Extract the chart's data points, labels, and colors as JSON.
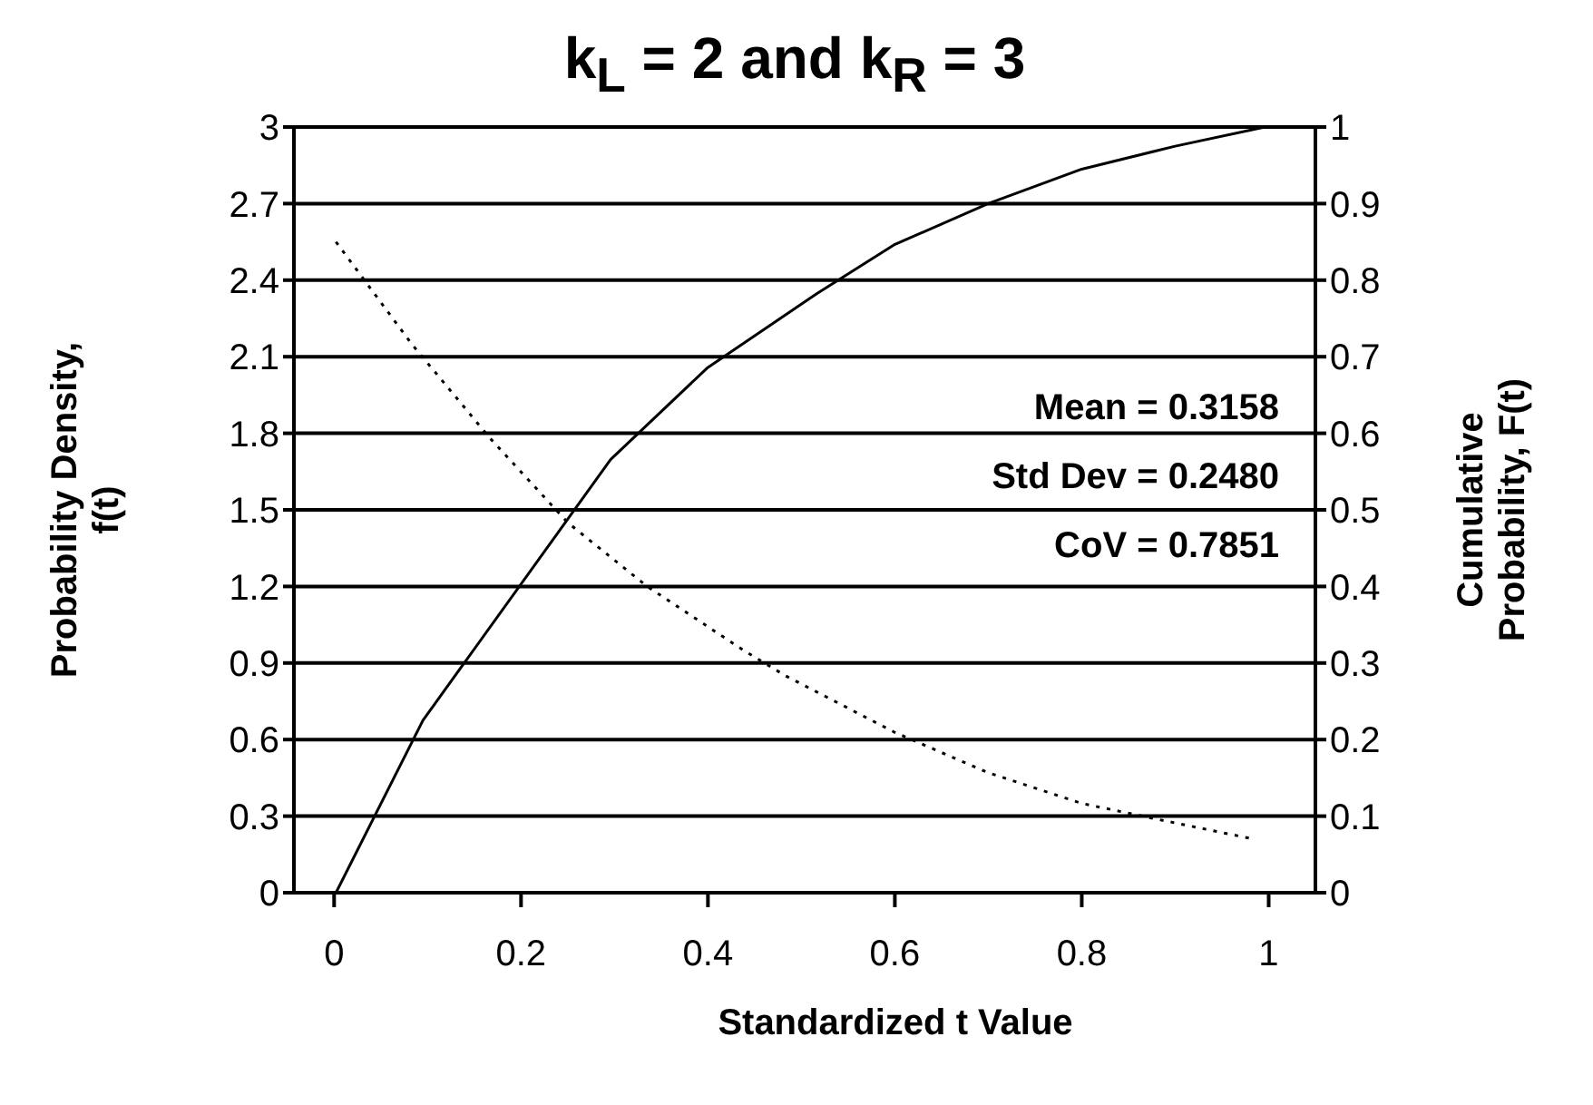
{
  "chart_data": {
    "type": "line",
    "title": "k$_{L}$ = 2 and k$_{R}$ = 3",
    "xlabel": "Standardized t Value",
    "ylabel": "Probability Density, f(t)",
    "y2label": "Cumulative Probability, F(t)",
    "series": [
      {
        "color": "#000000",
        "line_style": "dotted",
        "x": [
          0.002,
          0.083,
          0.167,
          0.25,
          0.335,
          0.438,
          0.483,
          0.599,
          0.7,
          0.8,
          0.878,
          0.984
        ],
        "values": [
          2.55,
          2.15,
          1.78,
          1.45,
          1.2,
          0.95,
          0.85,
          0.63,
          0.47,
          0.35,
          0.29,
          0.21
        ]
      },
      {
        "color": "#000000",
        "line_style": "solid",
        "axis": "y2",
        "x": [
          0.002,
          0.095,
          0.296,
          0.399,
          0.516,
          0.599,
          0.7,
          0.8,
          0.9,
          0.996
        ],
        "values": [
          0,
          0.225,
          0.566,
          0.685,
          0.782,
          0.846,
          0.9,
          0.945,
          0.975,
          1.0
        ]
      }
    ],
    "xlim": [
      -0.043,
      1.05
    ],
    "xticks": [
      0,
      0.2,
      0.4,
      0.6,
      0.8,
      1
    ],
    "ylim": [
      0,
      3
    ],
    "yticks": [
      0,
      0.3,
      0.6,
      0.9,
      1.2,
      1.5,
      1.8,
      2.1,
      2.4,
      2.7,
      3
    ],
    "y2lim": [
      0,
      1
    ],
    "y2ticks": [
      0,
      0.1,
      0.2,
      0.3,
      0.4,
      0.5,
      0.6,
      0.7,
      0.8,
      0.9,
      1
    ],
    "annotations": [
      "Mean = 0.3158",
      "Std Dev = 0.2480",
      "CoV = 0.7851"
    ],
    "grid": "y",
    "marker": "none"
  }
}
